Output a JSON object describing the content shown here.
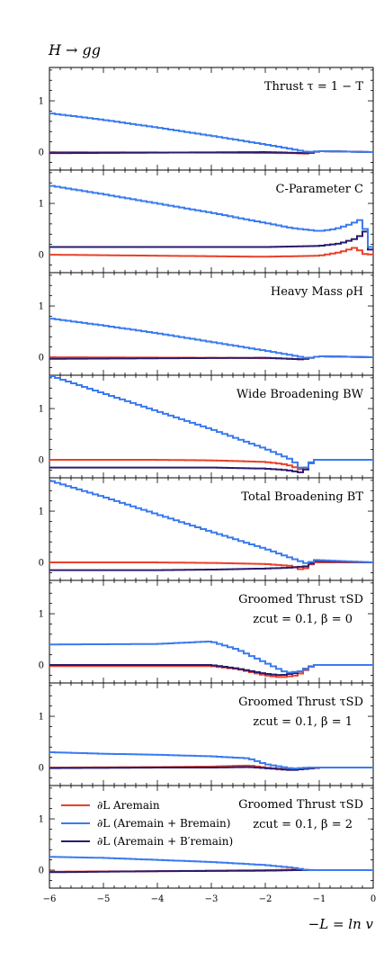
{
  "figure": {
    "title": "H → gg",
    "xlabel": "−L = ln v"
  },
  "colors": {
    "red": "#e8412a",
    "blue": "#3a7bf0",
    "purple": "#2b1b6e"
  },
  "legend": {
    "entries": [
      {
        "series": "red",
        "label": "∂L Aremain"
      },
      {
        "series": "blue",
        "label": "∂L (Aremain + Bremain)"
      },
      {
        "series": "purple",
        "label": "∂L (Aremain + B′remain)"
      }
    ]
  },
  "chart_data": {
    "type": "line",
    "xlim": [
      -6,
      0
    ],
    "ylim": [
      -0.35,
      1.65
    ],
    "x_ticks": [
      -6,
      -5,
      -4,
      -3,
      -2,
      -1,
      0
    ],
    "y_ticks": [
      0,
      1
    ],
    "grid": false,
    "legend_position": "lower-left of last panel",
    "panels": [
      {
        "label": "Thrust τ = 1 − T",
        "sublabel": "",
        "series": {
          "red": [
            [
              -6,
              0
            ],
            [
              -3,
              -0.01
            ],
            [
              -1.5,
              -0.02
            ],
            [
              -1.2,
              -0.03
            ],
            [
              -1,
              0.02
            ],
            [
              0,
              0
            ]
          ],
          "blue": [
            [
              -6,
              0.76
            ],
            [
              -5,
              0.63
            ],
            [
              -4,
              0.48
            ],
            [
              -3,
              0.32
            ],
            [
              -2,
              0.15
            ],
            [
              -1.5,
              0.06
            ],
            [
              -1.2,
              0.0
            ],
            [
              -1,
              0.02
            ],
            [
              0,
              0
            ]
          ],
          "purple": [
            [
              -6,
              -0.02
            ],
            [
              -4,
              -0.01
            ],
            [
              -2,
              0.0
            ],
            [
              -1.2,
              -0.02
            ],
            [
              -1,
              0.02
            ],
            [
              0,
              0
            ]
          ]
        }
      },
      {
        "label": "C-Parameter C",
        "sublabel": "",
        "series": {
          "red": [
            [
              -6,
              0
            ],
            [
              -4,
              -0.02
            ],
            [
              -2,
              -0.04
            ],
            [
              -1,
              -0.02
            ],
            [
              -0.6,
              0.05
            ],
            [
              -0.3,
              0.15
            ],
            [
              -0.2,
              0.02
            ],
            [
              0,
              0
            ]
          ],
          "blue": [
            [
              -6,
              1.35
            ],
            [
              -5,
              1.18
            ],
            [
              -4,
              1.0
            ],
            [
              -3,
              0.82
            ],
            [
              -2,
              0.62
            ],
            [
              -1.5,
              0.52
            ],
            [
              -1,
              0.46
            ],
            [
              -0.7,
              0.5
            ],
            [
              -0.4,
              0.6
            ],
            [
              -0.2,
              0.7
            ],
            [
              -0.1,
              0.3
            ],
            [
              0,
              0
            ]
          ],
          "purple": [
            [
              -6,
              0.15
            ],
            [
              -4,
              0.15
            ],
            [
              -2,
              0.15
            ],
            [
              -1,
              0.17
            ],
            [
              -0.6,
              0.22
            ],
            [
              -0.3,
              0.32
            ],
            [
              -0.15,
              0.45
            ],
            [
              -0.05,
              0.1
            ],
            [
              0,
              0
            ]
          ]
        }
      },
      {
        "label": "Heavy Mass ρH",
        "sublabel": "",
        "series": {
          "red": [
            [
              -6,
              0
            ],
            [
              -3,
              -0.01
            ],
            [
              -1.8,
              -0.02
            ],
            [
              -1.3,
              -0.04
            ],
            [
              -1,
              0.02
            ],
            [
              0,
              0
            ]
          ],
          "blue": [
            [
              -6,
              0.76
            ],
            [
              -5,
              0.62
            ],
            [
              -4,
              0.47
            ],
            [
              -3,
              0.3
            ],
            [
              -2,
              0.13
            ],
            [
              -1.5,
              0.04
            ],
            [
              -1.2,
              -0.02
            ],
            [
              -1,
              0.02
            ],
            [
              0,
              0
            ]
          ],
          "purple": [
            [
              -6,
              -0.03
            ],
            [
              -4,
              -0.02
            ],
            [
              -2,
              -0.01
            ],
            [
              -1.3,
              -0.04
            ],
            [
              -1,
              0.02
            ],
            [
              0,
              0
            ]
          ]
        }
      },
      {
        "label": "Wide Broadening BW",
        "sublabel": "",
        "series": {
          "red": [
            [
              -6,
              0
            ],
            [
              -4,
              0.0
            ],
            [
              -3,
              -0.01
            ],
            [
              -2,
              -0.04
            ],
            [
              -1.6,
              -0.09
            ],
            [
              -1.3,
              -0.2
            ],
            [
              -1.1,
              0.0
            ],
            [
              0,
              0
            ]
          ],
          "blue": [
            [
              -6,
              1.65
            ],
            [
              -5,
              1.3
            ],
            [
              -4,
              0.95
            ],
            [
              -3,
              0.6
            ],
            [
              -2,
              0.22
            ],
            [
              -1.5,
              0.0
            ],
            [
              -1.3,
              -0.2
            ],
            [
              -1.1,
              0.0
            ],
            [
              0,
              0
            ]
          ],
          "purple": [
            [
              -6,
              -0.15
            ],
            [
              -4,
              -0.15
            ],
            [
              -3,
              -0.15
            ],
            [
              -2,
              -0.17
            ],
            [
              -1.6,
              -0.2
            ],
            [
              -1.3,
              -0.25
            ],
            [
              -1.1,
              0.0
            ],
            [
              0,
              0
            ]
          ]
        }
      },
      {
        "label": "Total Broadening BT",
        "sublabel": "",
        "series": {
          "red": [
            [
              -6,
              0
            ],
            [
              -4,
              0.0
            ],
            [
              -3,
              -0.01
            ],
            [
              -2,
              -0.03
            ],
            [
              -1.5,
              -0.07
            ],
            [
              -1.3,
              -0.15
            ],
            [
              -1.1,
              0.0
            ],
            [
              0,
              0
            ]
          ],
          "blue": [
            [
              -6,
              1.6
            ],
            [
              -5,
              1.28
            ],
            [
              -4,
              0.94
            ],
            [
              -3,
              0.6
            ],
            [
              -2,
              0.27
            ],
            [
              -1.5,
              0.08
            ],
            [
              -1.2,
              -0.03
            ],
            [
              -1.1,
              0.05
            ],
            [
              0,
              0
            ]
          ],
          "purple": [
            [
              -6,
              -0.15
            ],
            [
              -4,
              -0.15
            ],
            [
              -3,
              -0.14
            ],
            [
              -2,
              -0.12
            ],
            [
              -1.5,
              -0.1
            ],
            [
              -1.2,
              -0.07
            ],
            [
              -1.1,
              0.03
            ],
            [
              0,
              0
            ]
          ]
        }
      },
      {
        "label": "Groomed Thrust τSD",
        "sublabel": "zcut = 0.1, β = 0",
        "series": {
          "red": [
            [
              -6,
              -0.02
            ],
            [
              -4,
              -0.02
            ],
            [
              -3,
              -0.02
            ],
            [
              -2.5,
              -0.08
            ],
            [
              -2,
              -0.2
            ],
            [
              -1.7,
              -0.24
            ],
            [
              -1.4,
              -0.2
            ],
            [
              -1.1,
              0.0
            ],
            [
              0,
              0
            ]
          ],
          "blue": [
            [
              -6,
              0.4
            ],
            [
              -4,
              0.41
            ],
            [
              -3,
              0.46
            ],
            [
              -2.5,
              0.3
            ],
            [
              -2,
              0.05
            ],
            [
              -1.6,
              -0.15
            ],
            [
              -1.3,
              -0.12
            ],
            [
              -1.1,
              0.0
            ],
            [
              0,
              0
            ]
          ],
          "purple": [
            [
              -6,
              0.0
            ],
            [
              -4,
              0.0
            ],
            [
              -3,
              0.0
            ],
            [
              -2.5,
              -0.07
            ],
            [
              -2,
              -0.17
            ],
            [
              -1.7,
              -0.2
            ],
            [
              -1.4,
              -0.15
            ],
            [
              -1.1,
              0.0
            ],
            [
              0,
              0
            ]
          ]
        }
      },
      {
        "label": "Groomed Thrust τSD",
        "sublabel": "zcut = 0.1, β = 1",
        "series": {
          "red": [
            [
              -6,
              0.0
            ],
            [
              -4,
              0.01
            ],
            [
              -3,
              0.02
            ],
            [
              -2.3,
              0.04
            ],
            [
              -2,
              0.0
            ],
            [
              -1.5,
              -0.04
            ],
            [
              -1.2,
              -0.02
            ],
            [
              -1,
              0.0
            ],
            [
              0,
              0
            ]
          ],
          "blue": [
            [
              -6,
              0.3
            ],
            [
              -5,
              0.27
            ],
            [
              -4,
              0.25
            ],
            [
              -3,
              0.22
            ],
            [
              -2.3,
              0.18
            ],
            [
              -2,
              0.07
            ],
            [
              -1.5,
              -0.02
            ],
            [
              -1.2,
              0.0
            ],
            [
              0,
              0
            ]
          ],
          "purple": [
            [
              -6,
              -0.01
            ],
            [
              -4,
              0.0
            ],
            [
              -3,
              0.0
            ],
            [
              -2.3,
              0.01
            ],
            [
              -2,
              -0.01
            ],
            [
              -1.5,
              -0.05
            ],
            [
              -1.2,
              -0.02
            ],
            [
              -1,
              0.0
            ],
            [
              0,
              0
            ]
          ]
        }
      },
      {
        "label": "Groomed Thrust τSD",
        "sublabel": "zcut = 0.1, β = 2",
        "series": {
          "red": [
            [
              -6,
              -0.03
            ],
            [
              -4,
              -0.02
            ],
            [
              -2,
              0.0
            ],
            [
              -1.5,
              0.01
            ],
            [
              -1,
              0.0
            ],
            [
              0,
              0
            ]
          ],
          "blue": [
            [
              -6,
              0.26
            ],
            [
              -5,
              0.24
            ],
            [
              -4,
              0.2
            ],
            [
              -3,
              0.16
            ],
            [
              -2,
              0.1
            ],
            [
              -1.5,
              0.05
            ],
            [
              -1.2,
              0.0
            ],
            [
              0,
              0
            ]
          ],
          "purple": [
            [
              -6,
              -0.04
            ],
            [
              -4,
              -0.02
            ],
            [
              -2,
              -0.01
            ],
            [
              -1.5,
              0.0
            ],
            [
              -1,
              0.0
            ],
            [
              0,
              0
            ]
          ]
        }
      }
    ]
  }
}
